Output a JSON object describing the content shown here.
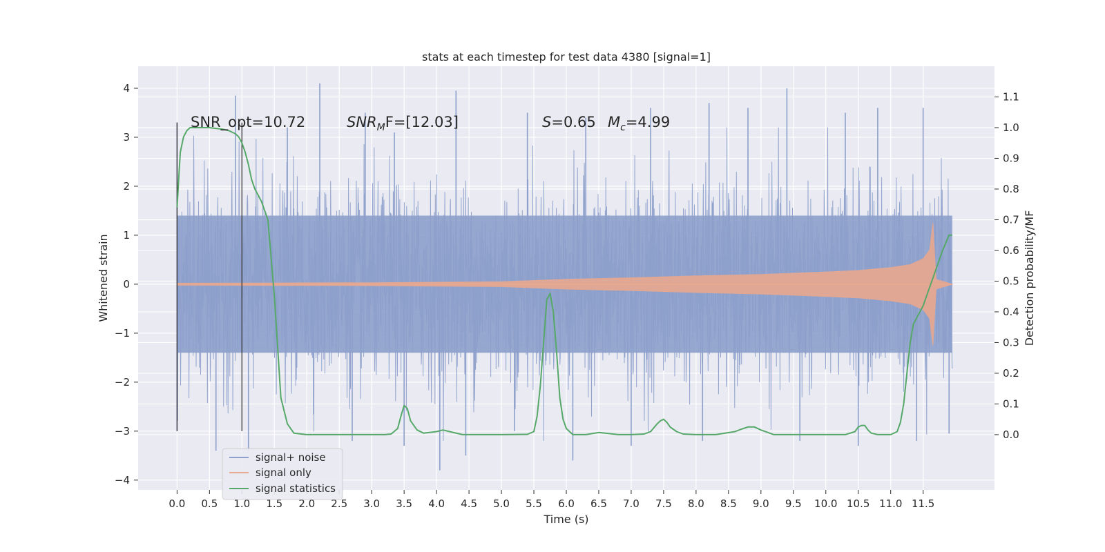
{
  "chart_data": {
    "type": "line",
    "title": "stats at each timestep for test data 4380 [signal=1]",
    "xlabel": "Time (s)",
    "ylabel_left": "Whitened strain",
    "ylabel_right": "Detection probability/MF",
    "xlim": [
      -0.6,
      12.6
    ],
    "ylim_left": [
      -4.2,
      4.45
    ],
    "ylim_right": [
      -0.18,
      1.2
    ],
    "x_ticks": [
      "0.0",
      "0.5",
      "1.0",
      "1.5",
      "2.0",
      "2.5",
      "3.0",
      "3.5",
      "4.0",
      "4.5",
      "5.0",
      "5.5",
      "6.0",
      "6.5",
      "7.0",
      "7.5",
      "8.0",
      "8.5",
      "9.0",
      "9.5",
      "10.0",
      "10.5",
      "11.0",
      "11.5"
    ],
    "y_ticks_left": [
      "−4",
      "−3",
      "−2",
      "−1",
      "0",
      "1",
      "2",
      "3",
      "4"
    ],
    "y_ticks_right": [
      "0.0",
      "0.1",
      "0.2",
      "0.3",
      "0.4",
      "0.5",
      "0.6",
      "0.7",
      "0.8",
      "0.9",
      "1.0",
      "1.1"
    ],
    "grid": true,
    "legend_position": "lower-left",
    "vertical_markers": [
      0.0,
      1.0
    ],
    "series": [
      {
        "name": "signal+ noise",
        "axis": "left",
        "color": "#8da0cb",
        "x_range": [
          0.0,
          11.95
        ],
        "envelope_typical": 1.4,
        "peaks": [
          [
            0.0,
            3.3
          ],
          [
            0.9,
            3.85
          ],
          [
            1.7,
            3.2
          ],
          [
            2.2,
            4.1
          ],
          [
            2.9,
            3.5
          ],
          [
            3.35,
            3.1
          ],
          [
            4.3,
            3.95
          ],
          [
            5.4,
            3.5
          ],
          [
            6.3,
            3.4
          ],
          [
            7.3,
            3.6
          ],
          [
            8.2,
            3.7
          ],
          [
            8.8,
            3.6
          ],
          [
            9.4,
            4.0
          ],
          [
            10.3,
            3.5
          ],
          [
            10.8,
            3.6
          ],
          [
            11.5,
            3.6
          ]
        ],
        "troughs": [
          [
            0.0,
            -3.0
          ],
          [
            0.6,
            -3.4
          ],
          [
            1.1,
            -3.4
          ],
          [
            2.7,
            -3.2
          ],
          [
            3.5,
            -3.3
          ],
          [
            4.05,
            -3.8
          ],
          [
            4.45,
            -3.5
          ],
          [
            5.2,
            -3.0
          ],
          [
            6.1,
            -3.6
          ],
          [
            7.0,
            -3.3
          ],
          [
            8.1,
            -3.2
          ],
          [
            9.6,
            -3.2
          ],
          [
            10.5,
            -3.3
          ],
          [
            11.4,
            -3.2
          ],
          [
            11.9,
            -3.05
          ]
        ]
      },
      {
        "name": "signal only",
        "axis": "left",
        "color": "#e9a88f",
        "envelope": [
          [
            0.0,
            0.02
          ],
          [
            3.0,
            0.03
          ],
          [
            5.0,
            0.05
          ],
          [
            6.0,
            0.1
          ],
          [
            7.0,
            0.13
          ],
          [
            8.0,
            0.17
          ],
          [
            9.0,
            0.2
          ],
          [
            10.0,
            0.25
          ],
          [
            10.5,
            0.28
          ],
          [
            11.0,
            0.34
          ],
          [
            11.3,
            0.4
          ],
          [
            11.5,
            0.52
          ],
          [
            11.6,
            0.7
          ],
          [
            11.65,
            1.25
          ],
          [
            11.7,
            0.1
          ],
          [
            11.95,
            0.0
          ]
        ]
      },
      {
        "name": "signal statistics",
        "axis": "right",
        "color": "#55a868",
        "x": [
          0.0,
          0.03,
          0.05,
          0.1,
          0.15,
          0.2,
          0.3,
          0.5,
          0.7,
          0.8,
          0.9,
          0.95,
          1.0,
          1.05,
          1.1,
          1.15,
          1.2,
          1.3,
          1.4,
          1.5,
          1.6,
          1.7,
          1.8,
          2.0,
          2.5,
          3.0,
          3.2,
          3.3,
          3.4,
          3.45,
          3.5,
          3.55,
          3.6,
          3.7,
          3.8,
          4.0,
          4.1,
          4.2,
          4.4,
          4.6,
          5.0,
          5.4,
          5.5,
          5.55,
          5.6,
          5.65,
          5.7,
          5.75,
          5.8,
          5.85,
          5.9,
          5.95,
          6.0,
          6.1,
          6.3,
          6.5,
          6.6,
          6.8,
          7.0,
          7.2,
          7.3,
          7.4,
          7.45,
          7.5,
          7.55,
          7.6,
          7.7,
          7.8,
          8.0,
          8.3,
          8.6,
          8.7,
          8.8,
          8.9,
          9.0,
          9.2,
          9.5,
          10.0,
          10.3,
          10.45,
          10.5,
          10.55,
          10.6,
          10.65,
          10.7,
          10.8,
          11.0,
          11.1,
          11.15,
          11.2,
          11.25,
          11.3,
          11.35,
          11.4,
          11.5,
          11.6,
          11.7,
          11.8,
          11.9,
          11.95
        ],
        "y": [
          0.74,
          0.85,
          0.92,
          0.97,
          0.99,
          1.0,
          1.0,
          1.0,
          0.995,
          0.99,
          0.98,
          0.97,
          0.95,
          0.92,
          0.88,
          0.83,
          0.8,
          0.76,
          0.7,
          0.45,
          0.12,
          0.035,
          0.005,
          0.0,
          0.0,
          0.0,
          0.0,
          0.002,
          0.02,
          0.06,
          0.095,
          0.085,
          0.045,
          0.015,
          0.005,
          0.01,
          0.015,
          0.01,
          0.0,
          0.0,
          0.0,
          0.001,
          0.01,
          0.06,
          0.16,
          0.3,
          0.44,
          0.46,
          0.4,
          0.27,
          0.12,
          0.05,
          0.02,
          0.0,
          0.0,
          0.007,
          0.005,
          0.0,
          0.0,
          0.002,
          0.01,
          0.035,
          0.045,
          0.05,
          0.04,
          0.025,
          0.01,
          0.002,
          0.0,
          0.0,
          0.01,
          0.018,
          0.025,
          0.025,
          0.015,
          0.0,
          0.0,
          0.0,
          0.0,
          0.01,
          0.025,
          0.03,
          0.03,
          0.015,
          0.005,
          0.0,
          0.0,
          0.01,
          0.04,
          0.1,
          0.2,
          0.3,
          0.36,
          0.38,
          0.42,
          0.48,
          0.54,
          0.6,
          0.65,
          0.65
        ]
      }
    ],
    "annotations": {
      "snr_opt": "SNR_opt=10.72",
      "snr_mf_base": "SNR",
      "snr_mf_sub": "M",
      "snr_mf_rest": "F=[12.03]",
      "s_label": "S",
      "s_value": "=0.65",
      "mc_base": "M",
      "mc_sub": "c",
      "mc_value": "=4.99"
    }
  }
}
